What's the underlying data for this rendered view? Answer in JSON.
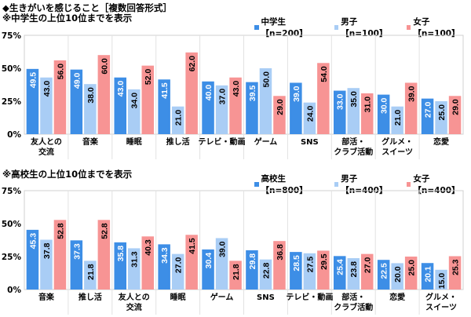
{
  "title": "◆生きがいを感じること［複数回答形式］",
  "colors": {
    "total": "#3d8ee6",
    "male": "#a9cdf5",
    "female": "#f79494"
  },
  "chart_data": [
    {
      "type": "bar",
      "subtitle": "※中学生の上位10位までを表示",
      "ylim": [
        0,
        75
      ],
      "yticks": [
        "0%",
        "25%",
        "50%",
        "75%"
      ],
      "ytick_values": [
        0,
        25,
        50,
        75
      ],
      "categories": [
        "友人との\n交流",
        "音楽",
        "睡眠",
        "推し活",
        "テレビ・動画",
        "ゲーム",
        "SNS",
        "部活・\nクラブ活動",
        "グルメ・\nスイーツ",
        "恋愛"
      ],
      "series": [
        {
          "name": "中学生【n=200】",
          "key": "total",
          "values": [
            49.5,
            49.0,
            43.0,
            41.5,
            40.0,
            39.5,
            39.0,
            33.0,
            30.0,
            27.0
          ]
        },
        {
          "name": "男子【n=100】",
          "key": "male",
          "values": [
            43.0,
            38.0,
            34.0,
            21.0,
            37.0,
            50.0,
            24.0,
            35.0,
            21.0,
            25.0
          ]
        },
        {
          "name": "女子【n=100】",
          "key": "female",
          "values": [
            56.0,
            60.0,
            52.0,
            62.0,
            43.0,
            29.0,
            54.0,
            31.0,
            39.0,
            29.0
          ]
        }
      ],
      "legend": "top-right",
      "grid": "vertical category separators"
    },
    {
      "type": "bar",
      "subtitle": "※高校生の上位10位までを表示",
      "ylim": [
        0,
        75
      ],
      "yticks": [
        "0%",
        "25%",
        "50%",
        "75%"
      ],
      "ytick_values": [
        0,
        25,
        50,
        75
      ],
      "categories": [
        "音楽",
        "推し活",
        "友人との\n交流",
        "睡眠",
        "ゲーム",
        "SNS",
        "テレビ・動画",
        "部活・\nクラブ活動",
        "恋愛",
        "グルメ・\nスイーツ"
      ],
      "series": [
        {
          "name": "高校生【n=800】",
          "key": "total",
          "values": [
            45.3,
            37.3,
            35.8,
            34.3,
            30.4,
            29.8,
            28.5,
            25.4,
            22.5,
            20.1
          ]
        },
        {
          "name": "男子【n=400】",
          "key": "male",
          "values": [
            37.8,
            21.8,
            31.3,
            27.0,
            39.0,
            22.8,
            27.5,
            23.8,
            20.0,
            15.0
          ]
        },
        {
          "name": "女子【n=400】",
          "key": "female",
          "values": [
            52.8,
            52.8,
            40.3,
            41.5,
            21.8,
            36.8,
            29.5,
            27.0,
            25.0,
            25.3
          ]
        }
      ],
      "legend": "top-right",
      "grid": "vertical category separators"
    }
  ]
}
